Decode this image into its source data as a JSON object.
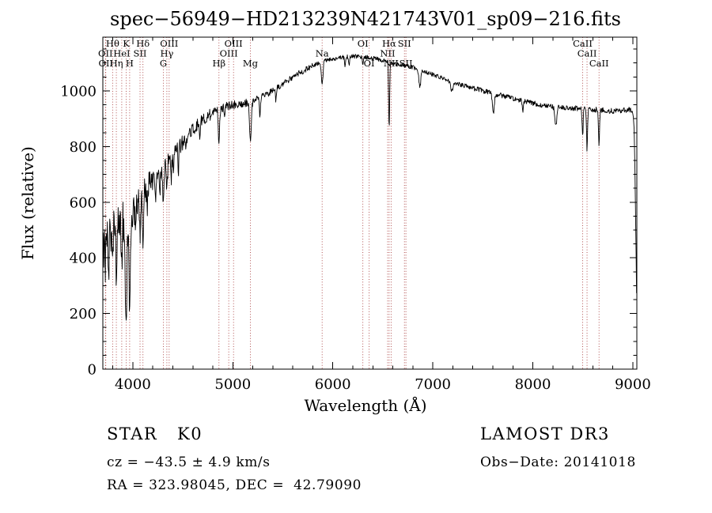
{
  "title": "spec−56949−HD213239N421743V01_sp09−216.fits",
  "footer": {
    "class_label": "STAR",
    "subclass": "K0",
    "survey": "LAMOST DR3",
    "cz": "cz = −43.5 ± 4.9 km/s",
    "obs_date": "Obs−Date: 20141018",
    "coords": "RA = 323.98045, DEC =  42.79090"
  },
  "chart_data": {
    "type": "line",
    "title": "spec−56949−HD213239N421743V01_sp09−216.fits",
    "xlabel": "Wavelength (Å)",
    "ylabel": "Flux (relative)",
    "xlim": [
      3700,
      9040
    ],
    "ylim": [
      0,
      1193
    ],
    "x_ticks": [
      4000,
      5000,
      6000,
      7000,
      8000,
      9000
    ],
    "y_ticks": [
      0,
      200,
      400,
      600,
      800,
      1000
    ],
    "x_minor_step": 200,
    "y_minor_step": 50,
    "sample_step": 4,
    "grid": false,
    "legend": false,
    "line_color": "#000000",
    "marker_color": "#aa4040",
    "continuum": [
      [
        3700,
        430
      ],
      [
        3750,
        470
      ],
      [
        3800,
        500
      ],
      [
        3850,
        520
      ],
      [
        3900,
        540
      ],
      [
        3950,
        548
      ],
      [
        4000,
        560
      ],
      [
        4050,
        600
      ],
      [
        4100,
        630
      ],
      [
        4150,
        660
      ],
      [
        4200,
        690
      ],
      [
        4250,
        710
      ],
      [
        4300,
        730
      ],
      [
        4350,
        752
      ],
      [
        4400,
        770
      ],
      [
        4450,
        790
      ],
      [
        4500,
        815
      ],
      [
        4550,
        840
      ],
      [
        4600,
        860
      ],
      [
        4650,
        880
      ],
      [
        4700,
        895
      ],
      [
        4750,
        910
      ],
      [
        4800,
        920
      ],
      [
        4850,
        930
      ],
      [
        4900,
        940
      ],
      [
        4950,
        945
      ],
      [
        5000,
        950
      ],
      [
        5100,
        955
      ],
      [
        5200,
        965
      ],
      [
        5300,
        980
      ],
      [
        5400,
        1000
      ],
      [
        5500,
        1025
      ],
      [
        5600,
        1050
      ],
      [
        5700,
        1070
      ],
      [
        5800,
        1090
      ],
      [
        5900,
        1105
      ],
      [
        6000,
        1115
      ],
      [
        6100,
        1120
      ],
      [
        6200,
        1125
      ],
      [
        6300,
        1122
      ],
      [
        6400,
        1118
      ],
      [
        6500,
        1110
      ],
      [
        6600,
        1102
      ],
      [
        6700,
        1093
      ],
      [
        6800,
        1085
      ],
      [
        6900,
        1072
      ],
      [
        7000,
        1058
      ],
      [
        7100,
        1045
      ],
      [
        7200,
        1032
      ],
      [
        7300,
        1020
      ],
      [
        7400,
        1010
      ],
      [
        7500,
        1000
      ],
      [
        7600,
        990
      ],
      [
        7700,
        982
      ],
      [
        7800,
        973
      ],
      [
        7900,
        964
      ],
      [
        8000,
        956
      ],
      [
        8100,
        948
      ],
      [
        8200,
        942
      ],
      [
        8300,
        940
      ],
      [
        8400,
        938
      ],
      [
        8500,
        935
      ],
      [
        8600,
        933
      ],
      [
        8700,
        930
      ],
      [
        8800,
        928
      ],
      [
        8900,
        930
      ],
      [
        8960,
        933
      ],
      [
        9000,
        928
      ],
      [
        9012,
        880
      ],
      [
        9022,
        700
      ],
      [
        9032,
        420
      ],
      [
        9040,
        200
      ]
    ],
    "absorption_lines": [
      [
        3726,
        70,
        5
      ],
      [
        3760,
        110,
        4
      ],
      [
        3798,
        150,
        5
      ],
      [
        3820,
        90,
        4
      ],
      [
        3835,
        170,
        5
      ],
      [
        3860,
        80,
        4
      ],
      [
        3889,
        160,
        5
      ],
      [
        3910,
        70,
        4
      ],
      [
        3933,
        410,
        7
      ],
      [
        3968,
        380,
        7
      ],
      [
        4026,
        80,
        4
      ],
      [
        4072,
        150,
        4
      ],
      [
        4101,
        205,
        6
      ],
      [
        4144,
        70,
        4
      ],
      [
        4227,
        110,
        5
      ],
      [
        4271,
        70,
        4
      ],
      [
        4305,
        130,
        8
      ],
      [
        4340,
        115,
        6
      ],
      [
        4383,
        95,
        5
      ],
      [
        4405,
        90,
        4
      ],
      [
        4455,
        100,
        4
      ],
      [
        4531,
        55,
        4
      ],
      [
        4668,
        55,
        4
      ],
      [
        4861,
        120,
        6
      ],
      [
        4920,
        40,
        4
      ],
      [
        5175,
        140,
        9
      ],
      [
        5270,
        60,
        6
      ],
      [
        5430,
        40,
        5
      ],
      [
        5893,
        80,
        8
      ],
      [
        6122,
        40,
        4
      ],
      [
        6162,
        35,
        4
      ],
      [
        6300,
        30,
        4
      ],
      [
        6563,
        240,
        5
      ],
      [
        6870,
        60,
        10
      ],
      [
        7190,
        35,
        12
      ],
      [
        7605,
        70,
        9
      ],
      [
        7900,
        40,
        6
      ],
      [
        8230,
        70,
        9
      ],
      [
        8498,
        100,
        5
      ],
      [
        8542,
        145,
        5
      ],
      [
        8662,
        135,
        5
      ]
    ],
    "noise_profile": [
      [
        3700,
        3950,
        85
      ],
      [
        3950,
        4200,
        50
      ],
      [
        4200,
        4500,
        32
      ],
      [
        4500,
        4800,
        22
      ],
      [
        4800,
        5200,
        16
      ],
      [
        5200,
        5800,
        11
      ],
      [
        5800,
        6600,
        8
      ],
      [
        6600,
        7400,
        8
      ],
      [
        7400,
        8400,
        9
      ],
      [
        8400,
        9040,
        10
      ]
    ],
    "line_markers": [
      {
        "label": "Hθ",
        "wl": 3798,
        "row": 1
      },
      {
        "label": "K",
        "wl": 3933,
        "row": 1
      },
      {
        "label": "Hδ",
        "wl": 4101,
        "row": 1
      },
      {
        "label": "OIII",
        "wl": 4363,
        "row": 1
      },
      {
        "label": "OIII",
        "wl": 5007,
        "row": 1
      },
      {
        "label": "OI",
        "wl": 6300,
        "row": 1
      },
      {
        "label": "Hα",
        "wl": 6563,
        "row": 1
      },
      {
        "label": "SII",
        "wl": 6716,
        "row": 1
      },
      {
        "label": "CaII",
        "wl": 8498,
        "row": 1
      },
      {
        "label": "OII",
        "wl": 3726,
        "row": 2
      },
      {
        "label": "HeI",
        "wl": 3889,
        "row": 2
      },
      {
        "label": "SII",
        "wl": 4072,
        "row": 2
      },
      {
        "label": "Hγ",
        "wl": 4340,
        "row": 2
      },
      {
        "label": "OIII",
        "wl": 4959,
        "row": 2
      },
      {
        "label": "Na",
        "wl": 5893,
        "row": 2
      },
      {
        "label": "NII",
        "wl": 6548,
        "row": 2
      },
      {
        "label": "CaII",
        "wl": 8542,
        "row": 2
      },
      {
        "label": "OII",
        "wl": 3729,
        "row": 3
      },
      {
        "label": "Hη",
        "wl": 3835,
        "row": 3
      },
      {
        "label": "H",
        "wl": 3968,
        "row": 3
      },
      {
        "label": "G",
        "wl": 4305,
        "row": 3
      },
      {
        "label": "Hβ",
        "wl": 4861,
        "row": 3
      },
      {
        "label": "Mg",
        "wl": 5175,
        "row": 3
      },
      {
        "label": "OI",
        "wl": 6363,
        "row": 3
      },
      {
        "label": "NII",
        "wl": 6583,
        "row": 3
      },
      {
        "label": "SII",
        "wl": 6731,
        "row": 3
      },
      {
        "label": "CaII",
        "wl": 8662,
        "row": 3
      }
    ]
  }
}
